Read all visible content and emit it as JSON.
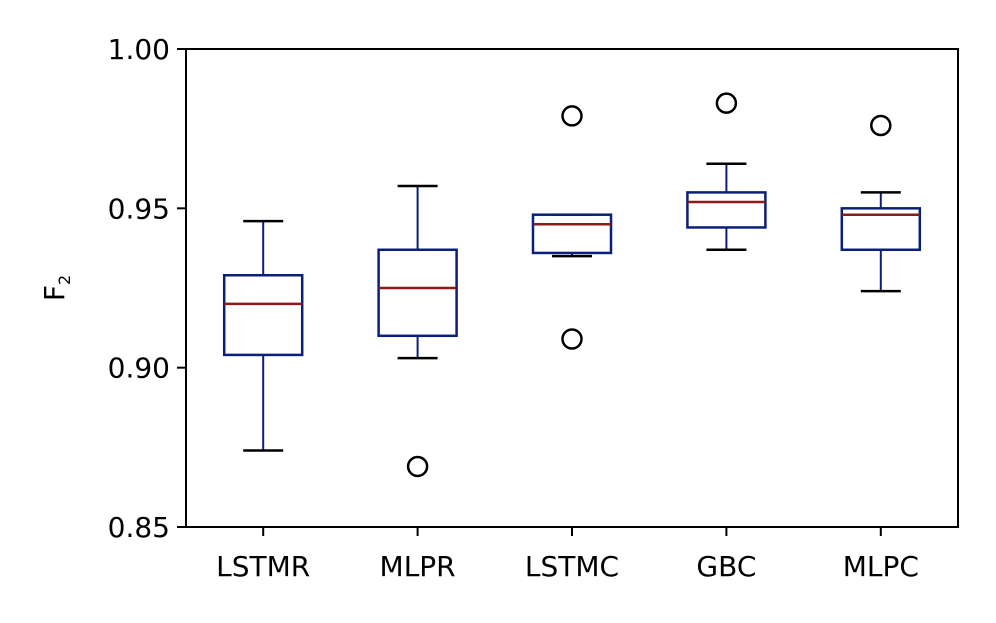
{
  "chart_data": {
    "type": "box",
    "title": "",
    "xlabel": "",
    "ylabel": "F",
    "ylabel_subscript": "2",
    "ylim": [
      0.85,
      1.0
    ],
    "yticks": [
      "0.85",
      "0.90",
      "0.95",
      "1.00"
    ],
    "ytick_values": [
      0.85,
      0.9,
      0.95,
      1.0
    ],
    "categories": [
      "LSTMR",
      "MLPR",
      "LSTMC",
      "GBC",
      "MLPC"
    ],
    "boxes": [
      {
        "name": "LSTMR",
        "whisker_low": 0.874,
        "q1": 0.904,
        "median": 0.92,
        "q3": 0.929,
        "whisker_high": 0.946,
        "outliers": []
      },
      {
        "name": "MLPR",
        "whisker_low": 0.903,
        "q1": 0.91,
        "median": 0.925,
        "q3": 0.937,
        "whisker_high": 0.957,
        "outliers": [
          0.869
        ]
      },
      {
        "name": "LSTMC",
        "whisker_low": 0.935,
        "q1": 0.936,
        "median": 0.945,
        "q3": 0.948,
        "whisker_high": 0.948,
        "outliers": [
          0.979,
          0.909
        ]
      },
      {
        "name": "GBC",
        "whisker_low": 0.937,
        "q1": 0.944,
        "median": 0.952,
        "q3": 0.955,
        "whisker_high": 0.964,
        "outliers": [
          0.983
        ]
      },
      {
        "name": "MLPC",
        "whisker_low": 0.924,
        "q1": 0.937,
        "median": 0.948,
        "q3": 0.95,
        "whisker_high": 0.955,
        "outliers": [
          0.976
        ]
      }
    ],
    "grid": false,
    "colors": {
      "box": "#0a1f7a",
      "median": "#8b1a1a",
      "whisker": "#000000",
      "outlier": "#000000"
    }
  }
}
